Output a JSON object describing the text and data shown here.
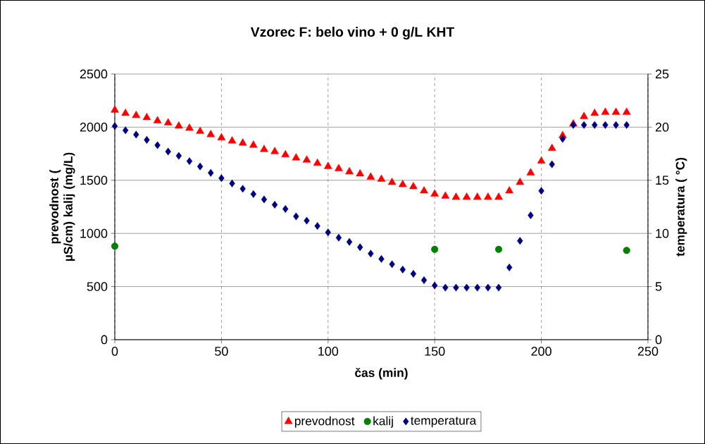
{
  "chart_data": {
    "type": "scatter",
    "title": "Vzorec F: belo vino + 0 g/L KHT",
    "xlabel": "čas (min)",
    "ylabel": "prevodnost ( µS/cm) kalij (mg/L)",
    "y2label": "temperatura ( °C)",
    "xlim": [
      0,
      250
    ],
    "xticks": [
      0,
      50,
      100,
      150,
      200,
      250
    ],
    "ylim": [
      0,
      2500
    ],
    "yticks": [
      0,
      500,
      1000,
      1500,
      2000,
      2500
    ],
    "y2lim": [
      0,
      25
    ],
    "y2ticks": [
      0,
      5,
      10,
      15,
      20,
      25
    ],
    "grid": true,
    "legend": "bottom",
    "series": [
      {
        "name": "prevodnost",
        "color": "#ff0000",
        "marker": "triangle",
        "x": [
          0,
          5,
          10,
          15,
          20,
          25,
          30,
          35,
          40,
          45,
          50,
          55,
          60,
          65,
          70,
          75,
          80,
          85,
          90,
          95,
          100,
          105,
          110,
          115,
          120,
          125,
          130,
          135,
          140,
          145,
          150,
          155,
          160,
          165,
          170,
          175,
          180,
          185,
          190,
          195,
          200,
          205,
          210,
          215,
          220,
          225,
          230,
          235,
          240
        ],
        "values": [
          2160,
          2130,
          2110,
          2090,
          2060,
          2040,
          2010,
          1990,
          1960,
          1930,
          1900,
          1870,
          1850,
          1830,
          1790,
          1770,
          1740,
          1710,
          1690,
          1660,
          1630,
          1610,
          1580,
          1560,
          1530,
          1510,
          1480,
          1460,
          1440,
          1400,
          1370,
          1350,
          1340,
          1340,
          1340,
          1340,
          1340,
          1400,
          1480,
          1570,
          1680,
          1800,
          1920,
          2030,
          2100,
          2130,
          2140,
          2140,
          2140
        ]
      },
      {
        "name": "kalij",
        "color": "#008000",
        "marker": "circle",
        "x": [
          0,
          150,
          180,
          240
        ],
        "values": [
          880,
          850,
          850,
          840
        ]
      },
      {
        "name": "temperatura",
        "color": "#000080",
        "marker": "diamond",
        "axis": "y2",
        "x": [
          0,
          5,
          10,
          15,
          20,
          25,
          30,
          35,
          40,
          45,
          50,
          55,
          60,
          65,
          70,
          75,
          80,
          85,
          90,
          95,
          100,
          105,
          110,
          115,
          120,
          125,
          130,
          135,
          140,
          145,
          150,
          155,
          160,
          165,
          170,
          175,
          180,
          185,
          190,
          195,
          200,
          205,
          210,
          215,
          220,
          225,
          230,
          235,
          240
        ],
        "values": [
          20.1,
          19.7,
          19.3,
          18.8,
          18.3,
          17.7,
          17.3,
          16.8,
          16.3,
          15.7,
          15.2,
          14.7,
          14.2,
          13.7,
          13.2,
          12.7,
          12.3,
          11.6,
          11.2,
          10.7,
          10.1,
          9.6,
          9.2,
          8.7,
          8.1,
          7.6,
          7.1,
          6.6,
          6.2,
          5.6,
          5.1,
          4.9,
          4.9,
          4.9,
          4.9,
          4.9,
          4.9,
          6.8,
          9.3,
          11.7,
          14.0,
          16.5,
          18.9,
          20.2,
          20.2,
          20.2,
          20.2,
          20.2,
          20.2
        ]
      }
    ]
  }
}
